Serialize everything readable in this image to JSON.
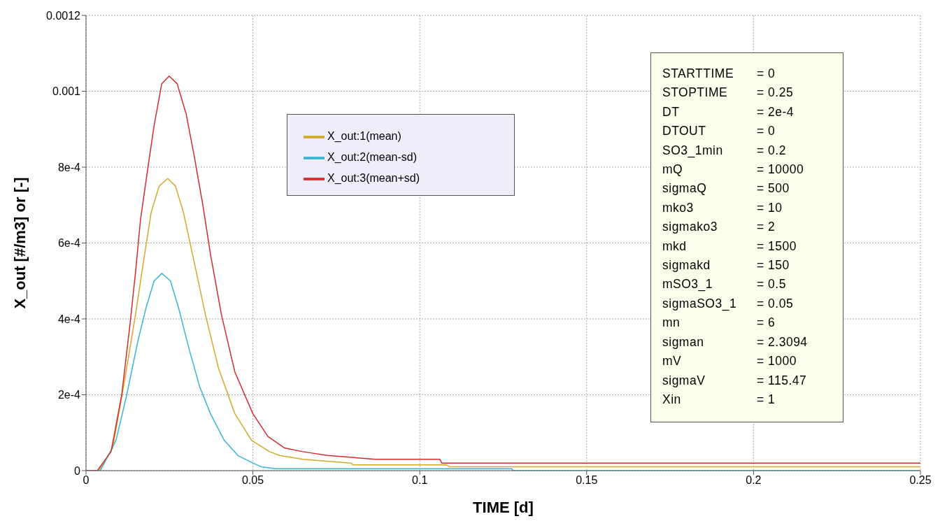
{
  "chart_data": {
    "type": "line",
    "xlabel": "TIME [d]",
    "ylabel": "X_out [#/m3] or [-]",
    "xlim": [
      0,
      0.25
    ],
    "xticks": [
      0,
      0.05,
      0.1,
      0.15,
      0.2,
      0.25
    ],
    "ylim": [
      0,
      0.0012
    ],
    "yticks": [
      0,
      {
        "value": 0.0002,
        "label": "2e-4"
      },
      {
        "value": 0.0004,
        "label": "4e-4"
      },
      {
        "value": 0.0006,
        "label": "6e-4"
      },
      {
        "value": 0.0008,
        "label": "8e-4"
      },
      0.001,
      0.0012
    ],
    "grid": true,
    "legend": "top",
    "line_style": "solid",
    "marker": "none",
    "series": [
      {
        "name": "X_out:1(mean)",
        "color": "#d4a829",
        "x": [
          0,
          0.0039,
          0.008,
          0.0116,
          0.0148,
          0.0172,
          0.0195,
          0.0219,
          0.0245,
          0.0268,
          0.0292,
          0.0324,
          0.0358,
          0.0397,
          0.0446,
          0.0496,
          0.055,
          0.058,
          0.065,
          0.0794,
          0.08,
          0.108,
          0.109,
          0.25
        ],
        "values": [
          0,
          0,
          6e-05,
          0.00024,
          0.00041,
          0.00055,
          0.00068,
          0.00075,
          0.00077,
          0.00075,
          0.00068,
          0.00055,
          0.00041,
          0.00027,
          0.00015,
          8e-05,
          5e-05,
          4e-05,
          3e-05,
          2e-05,
          1.5e-05,
          1.5e-05,
          1e-05,
          1e-05
        ]
      },
      {
        "name": "X_out:2(mean-sd)",
        "color": "#3bb5d3",
        "x": [
          0,
          0.0043,
          0.009,
          0.0122,
          0.0155,
          0.018,
          0.0204,
          0.0227,
          0.0253,
          0.0277,
          0.0309,
          0.0341,
          0.0373,
          0.0414,
          0.0455,
          0.05,
          0.0526,
          0.0569,
          0.1275,
          0.128,
          0.25
        ],
        "values": [
          0,
          0,
          8e-05,
          0.0002,
          0.00034,
          0.00043,
          0.0005,
          0.00052,
          0.0005,
          0.00043,
          0.00032,
          0.00022,
          0.00015,
          8e-05,
          4e-05,
          2e-05,
          1e-05,
          5e-06,
          5e-06,
          0,
          0
        ]
      },
      {
        "name": "X_out:3(mean+sd)",
        "color": "#d42c2c",
        "x": [
          0,
          0.0034,
          0.0075,
          0.0107,
          0.0131,
          0.0148,
          0.0163,
          0.0184,
          0.0204,
          0.0227,
          0.0249,
          0.0273,
          0.03,
          0.0324,
          0.035,
          0.0373,
          0.0406,
          0.0446,
          0.05,
          0.0545,
          0.0594,
          0.065,
          0.0723,
          0.0867,
          0.106,
          0.1066,
          0.25
        ],
        "values": [
          0,
          0,
          5e-05,
          0.0002,
          0.00038,
          0.00052,
          0.00066,
          0.00079,
          0.00091,
          0.00102,
          0.00104,
          0.00102,
          0.00094,
          0.00083,
          0.0007,
          0.00057,
          0.00041,
          0.00026,
          0.00015,
          9e-05,
          6e-05,
          5e-05,
          4e-05,
          3e-05,
          3e-05,
          2e-05,
          2e-05
        ]
      }
    ],
    "annotations": [
      "STARTTIME = 0",
      "STOPTIME = 0.25",
      "DT = 2e-4",
      "DTOUT = 0",
      "SO3_1min = 0.2",
      "mQ = 10000",
      "sigmaQ = 500",
      "mko3 = 10",
      "sigmako3 = 2",
      "mkd = 1500",
      "sigmakd = 150",
      "mSO3_1 = 0.5",
      "sigmaSO3_1 = 0.05",
      "mn = 6",
      "sigman = 2.3094",
      "mV = 1000",
      "sigmaV = 115.47",
      "Xin = 1"
    ]
  }
}
